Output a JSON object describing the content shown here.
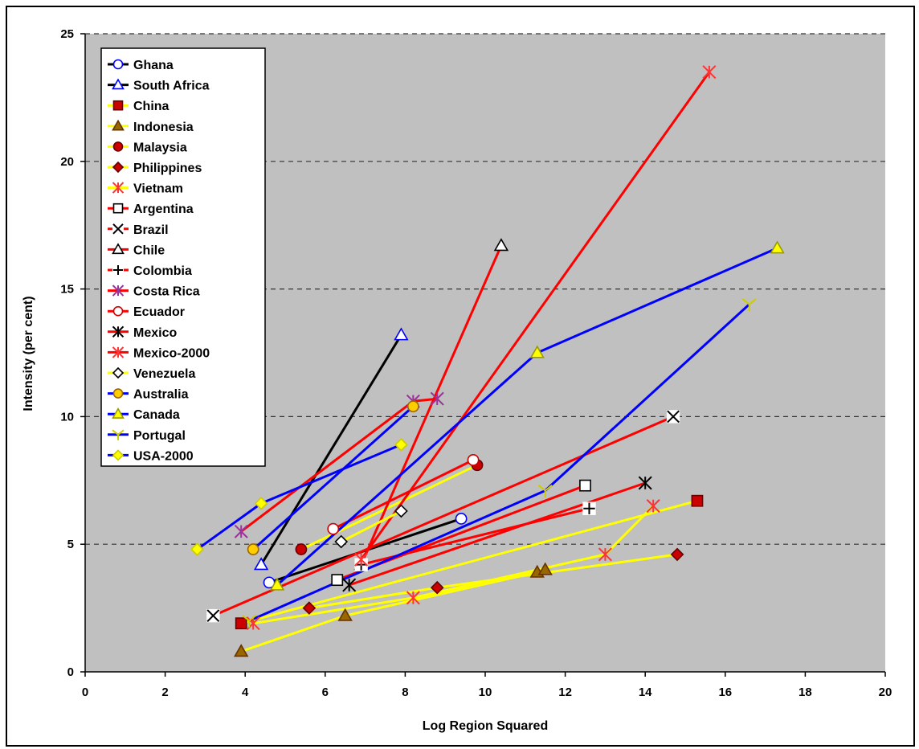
{
  "chart_data": {
    "type": "line",
    "title": "",
    "xlabel": "Log Region Squared",
    "ylabel": "Intensity (per cent)",
    "xlim": [
      0,
      20
    ],
    "ylim": [
      0,
      25
    ],
    "x_ticks": [
      "0",
      "2",
      "4",
      "6",
      "8",
      "10",
      "12",
      "14",
      "16",
      "18",
      "20"
    ],
    "y_ticks": [
      "0",
      "5",
      "10",
      "15",
      "20",
      "25"
    ],
    "grid": "horizontal dashed",
    "background": "#c0c0c0",
    "legend_position": "top-left",
    "series": [
      {
        "name": "Ghana",
        "line_color": "#000000",
        "marker": "circle",
        "marker_fill": "#ffffff",
        "marker_stroke": "#0000ff",
        "points": [
          [
            4.6,
            3.5
          ],
          [
            9.4,
            6.0
          ]
        ]
      },
      {
        "name": "South Africa",
        "line_color": "#000000",
        "marker": "triangle",
        "marker_fill": "#ffffff",
        "marker_stroke": "#0000ff",
        "points": [
          [
            4.4,
            4.2
          ],
          [
            7.9,
            13.2
          ]
        ]
      },
      {
        "name": "China",
        "line_color": "#ffff00",
        "marker": "square",
        "marker_fill": "#cc0000",
        "marker_stroke": "#660000",
        "points": [
          [
            3.9,
            1.9
          ],
          [
            15.3,
            6.7
          ]
        ]
      },
      {
        "name": "Indonesia",
        "line_color": "#ffff00",
        "marker": "triangle",
        "marker_fill": "#996600",
        "marker_stroke": "#663300",
        "points": [
          [
            3.9,
            0.8
          ],
          [
            6.5,
            2.2
          ],
          [
            11.3,
            3.9
          ],
          [
            11.5,
            4.0
          ]
        ]
      },
      {
        "name": "Malaysia",
        "line_color": "#ffff00",
        "marker": "circle",
        "marker_fill": "#cc0000",
        "marker_stroke": "#660000",
        "points": [
          [
            5.4,
            4.8
          ],
          [
            9.8,
            8.1
          ]
        ]
      },
      {
        "name": "Philippines",
        "line_color": "#ffff00",
        "marker": "diamond",
        "marker_fill": "#cc0000",
        "marker_stroke": "#660000",
        "points": [
          [
            5.6,
            2.5
          ],
          [
            8.8,
            3.3
          ],
          [
            14.8,
            4.6
          ]
        ]
      },
      {
        "name": "Vietnam",
        "line_color": "#ffff00",
        "marker": "asterisk",
        "marker_fill": "#ff3333",
        "marker_stroke": "#ff3333",
        "points": [
          [
            4.2,
            1.9
          ],
          [
            8.2,
            2.9
          ],
          [
            13.0,
            4.6
          ],
          [
            14.2,
            6.5
          ]
        ]
      },
      {
        "name": "Argentina",
        "line_color": "#ff0000",
        "marker": "square",
        "marker_fill": "#ffffff",
        "marker_stroke": "#000000",
        "points": [
          [
            6.3,
            3.6
          ],
          [
            12.5,
            7.3
          ]
        ]
      },
      {
        "name": "Brazil",
        "line_color": "#ff0000",
        "marker": "x",
        "marker_fill": "#ffffff",
        "marker_stroke": "#000000",
        "points": [
          [
            3.2,
            2.2
          ],
          [
            14.7,
            10.0
          ]
        ]
      },
      {
        "name": "Chile",
        "line_color": "#ff0000",
        "marker": "triangle",
        "marker_fill": "#ffffff",
        "marker_stroke": "#000000",
        "points": [
          [
            6.9,
            4.2
          ],
          [
            10.4,
            16.7
          ]
        ]
      },
      {
        "name": "Colombia",
        "line_color": "#ff0000",
        "marker": "plus",
        "marker_fill": "#ffffff",
        "marker_stroke": "#000000",
        "points": [
          [
            6.9,
            4.2
          ],
          [
            12.6,
            6.4
          ]
        ]
      },
      {
        "name": "Costa Rica",
        "line_color": "#ff0000",
        "marker": "asterisk",
        "marker_fill": "#993399",
        "marker_stroke": "#993399",
        "points": [
          [
            3.9,
            5.5
          ],
          [
            8.2,
            10.6
          ],
          [
            8.8,
            10.7
          ]
        ]
      },
      {
        "name": "Ecuador",
        "line_color": "#ff0000",
        "marker": "circle",
        "marker_fill": "#ffffff",
        "marker_stroke": "#cc0000",
        "points": [
          [
            6.2,
            5.6
          ],
          [
            9.7,
            8.3
          ]
        ]
      },
      {
        "name": "Mexico",
        "line_color": "#ff0000",
        "marker": "asterisk",
        "marker_fill": "#000000",
        "marker_stroke": "#000000",
        "points": [
          [
            6.6,
            3.4
          ],
          [
            14.0,
            7.4
          ]
        ]
      },
      {
        "name": "Mexico-2000",
        "line_color": "#ff0000",
        "marker": "asterisk",
        "marker_fill": "#ff3333",
        "marker_stroke": "#ff3333",
        "points": [
          [
            6.9,
            4.4
          ],
          [
            15.6,
            23.5
          ]
        ]
      },
      {
        "name": "Venezuela",
        "line_color": "#ffff00",
        "marker": "diamond",
        "marker_fill": "#ffffff",
        "marker_stroke": "#000000",
        "points": [
          [
            6.4,
            5.1
          ],
          [
            7.9,
            6.3
          ]
        ]
      },
      {
        "name": "Australia",
        "line_color": "#0000ff",
        "marker": "circle",
        "marker_fill": "#ffcc00",
        "marker_stroke": "#996600",
        "points": [
          [
            4.2,
            4.8
          ],
          [
            8.2,
            10.4
          ]
        ]
      },
      {
        "name": "Canada",
        "line_color": "#0000ff",
        "marker": "triangle",
        "marker_fill": "#ffff00",
        "marker_stroke": "#999900",
        "points": [
          [
            4.8,
            3.4
          ],
          [
            11.3,
            12.5
          ],
          [
            17.3,
            16.6
          ]
        ]
      },
      {
        "name": "Portugal",
        "line_color": "#0000ff",
        "marker": "star",
        "marker_fill": "#ffff00",
        "marker_stroke": "#cccc00",
        "points": [
          [
            4.1,
            2.0
          ],
          [
            11.5,
            7.1
          ],
          [
            16.6,
            14.4
          ]
        ]
      },
      {
        "name": "USA-2000",
        "line_color": "#0000ff",
        "marker": "diamond",
        "marker_fill": "#ffff00",
        "marker_stroke": "#cccc00",
        "points": [
          [
            2.8,
            4.8
          ],
          [
            4.4,
            6.6
          ],
          [
            7.9,
            8.9
          ]
        ]
      }
    ]
  }
}
